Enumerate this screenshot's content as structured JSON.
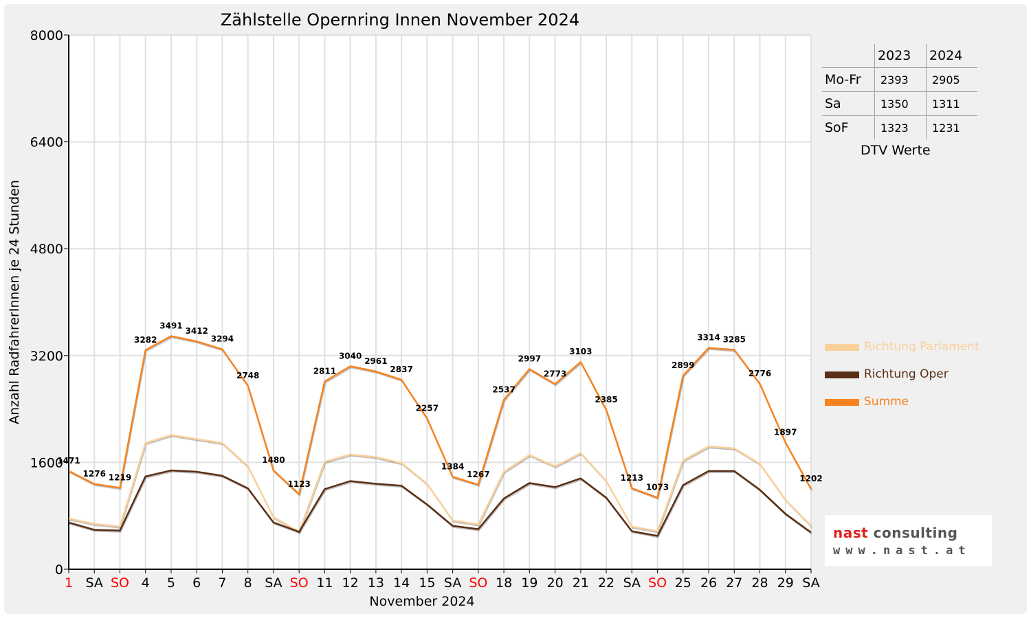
{
  "chart_data": {
    "type": "line",
    "title": "Zählstelle Opernring Innen November 2024",
    "xlabel": "November 2024",
    "ylabel": "Anzahl RadfahrerInnen je 24 Stunden",
    "ylim": [
      0,
      8000
    ],
    "yticks": [
      "0",
      "1600",
      "3200",
      "4800",
      "6400",
      "8000"
    ],
    "categories": [
      "1",
      "SA",
      "SO",
      "4",
      "5",
      "6",
      "7",
      "8",
      "SA",
      "SO",
      "11",
      "12",
      "13",
      "14",
      "15",
      "SA",
      "SO",
      "18",
      "19",
      "20",
      "21",
      "22",
      "SA",
      "SO",
      "25",
      "26",
      "27",
      "28",
      "29",
      "SA"
    ],
    "red_categories": [
      0,
      2,
      9,
      16,
      23
    ],
    "grid": true,
    "legend_position": "right",
    "series": [
      {
        "name": "Richtung Parlament",
        "color": "#fad09a",
        "values": [
          760,
          680,
          640,
          1890,
          2010,
          1950,
          1890,
          1540,
          780,
          560,
          1610,
          1720,
          1680,
          1590,
          1280,
          730,
          670,
          1460,
          1710,
          1540,
          1740,
          1320,
          640,
          570,
          1630,
          1840,
          1810,
          1580,
          1040,
          650
        ]
      },
      {
        "name": "Richtung Oper",
        "color": "#5a2e14",
        "values": [
          700,
          590,
          580,
          1390,
          1480,
          1460,
          1400,
          1210,
          700,
          560,
          1200,
          1320,
          1280,
          1250,
          970,
          650,
          600,
          1060,
          1290,
          1230,
          1360,
          1070,
          570,
          500,
          1260,
          1470,
          1470,
          1190,
          830,
          550
        ]
      },
      {
        "name": "Summe",
        "color": "#f7821e",
        "values": [
          1471,
          1276,
          1219,
          3282,
          3491,
          3412,
          3294,
          2748,
          1480,
          1123,
          2811,
          3040,
          2961,
          2837,
          2257,
          1384,
          1267,
          2537,
          2997,
          2773,
          3103,
          2385,
          1213,
          1073,
          2899,
          3314,
          3285,
          2776,
          1897,
          1202
        ]
      }
    ],
    "data_labels": [
      "1471",
      "1276",
      "1219",
      "3282",
      "3491",
      "3412",
      "3294",
      "2748",
      "1480",
      "1123",
      "2811",
      "3040",
      "2961",
      "2837",
      "2257",
      "1384",
      "1267",
      "2537",
      "2997",
      "2773",
      "3103",
      "2385",
      "1213",
      "1073",
      "2899",
      "3314",
      "3285",
      "2776",
      "1897",
      "1202"
    ]
  },
  "dtv": {
    "header": [
      "",
      "2023",
      "2024"
    ],
    "rows": [
      {
        "label": "Mo-Fr",
        "y2023": "2393",
        "y2024": "2905"
      },
      {
        "label": "Sa",
        "y2023": "1350",
        "y2024": "1311"
      },
      {
        "label": "SoF",
        "y2023": "1323",
        "y2024": "1231"
      }
    ],
    "caption": "DTV Werte"
  },
  "logo": {
    "name_part1": "nast",
    "name_part2": " consulting",
    "url": "www.nast.at"
  },
  "colors": {
    "background": "#f0f0f0",
    "grid": "#e0e0e0",
    "red_label": "#ff0000"
  }
}
